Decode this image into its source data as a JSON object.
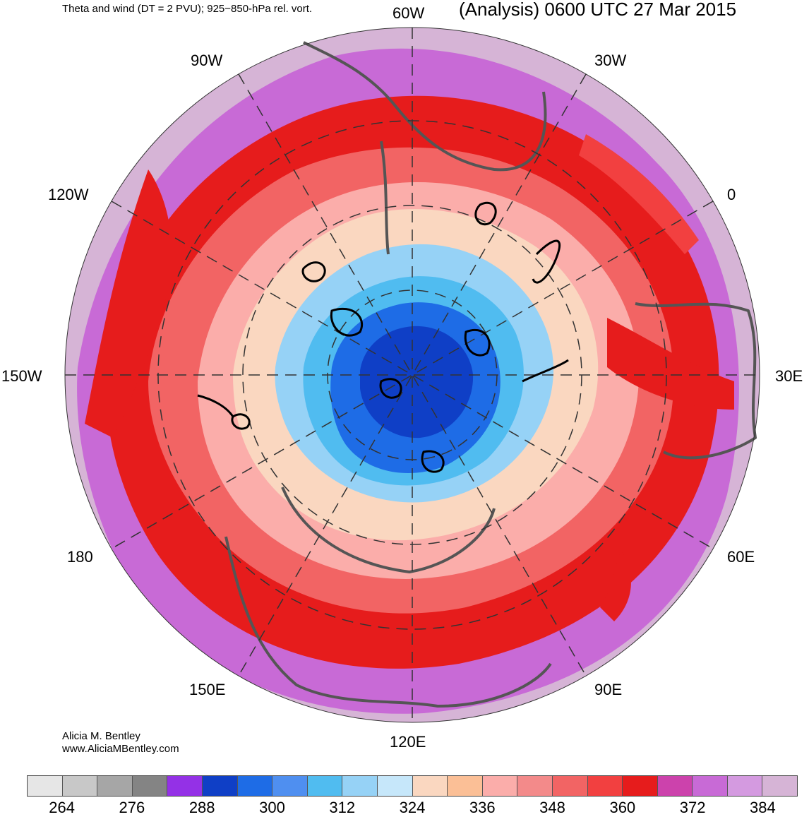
{
  "header": {
    "left_title": "Theta and wind (DT = 2 PVU); 925−850-hPa rel. vort.",
    "right_title": "(Analysis) 0600 UTC 27 Mar 2015"
  },
  "longitude_labels": {
    "lon_60w": "60W",
    "lon_30w": "30W",
    "lon_0": "0",
    "lon_30e": "30E",
    "lon_60e": "60E",
    "lon_90e": "90E",
    "lon_120e": "120E",
    "lon_150e": "150E",
    "lon_180": "180",
    "lon_150w": "150W",
    "lon_120w": "120W",
    "lon_90w": "90W"
  },
  "credit": {
    "name": "Alicia M. Bentley",
    "url": "www.AliciaMBentley.com"
  },
  "colorbar": {
    "colors": [
      "#e6e6e6",
      "#c8c8c8",
      "#a6a6a6",
      "#848484",
      "#9431e6",
      "#0f3fc6",
      "#1e6ce6",
      "#4f8ff0",
      "#50bcf0",
      "#96d2f6",
      "#c6e7fa",
      "#fad7c0",
      "#fbbf96",
      "#fbadaa",
      "#f38a8a",
      "#f26464",
      "#f24040",
      "#e61c1c",
      "#cc42ac",
      "#c86ad6",
      "#d49ae0",
      "#d6b4d6"
    ],
    "tick_labels": [
      "264",
      "276",
      "288",
      "300",
      "312",
      "324",
      "336",
      "348",
      "360",
      "372",
      "384"
    ]
  }
}
